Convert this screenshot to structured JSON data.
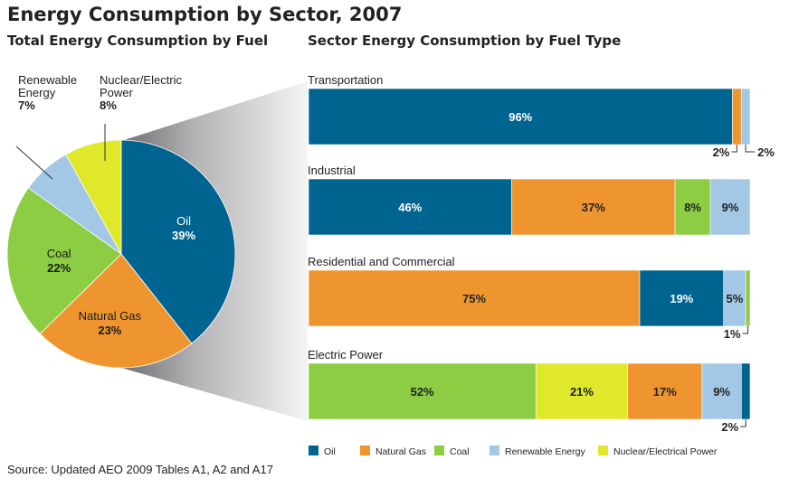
{
  "title": "Energy Consumption by Sector, 2007",
  "source": "Source: Updated AEO 2009 Tables A1, A2 and A17",
  "colors": {
    "Oil": "#006490",
    "Natural Gas": "#ef952f",
    "Coal": "#8ccd43",
    "Renewable Energy": "#a2c8e6",
    "Nuclear/Electric": "#dfe82a"
  },
  "chart_data": [
    {
      "type": "pie",
      "title": "Total Energy Consumption by Fuel",
      "slices": [
        {
          "name": "Oil",
          "value": 39,
          "label": "Oil",
          "value_label": "39%",
          "color_key": "Oil"
        },
        {
          "name": "Natural Gas",
          "value": 23,
          "label": "Natural Gas",
          "value_label": "23%",
          "color_key": "Natural Gas"
        },
        {
          "name": "Coal",
          "value": 22,
          "label": "Coal",
          "value_label": "22%",
          "color_key": "Coal"
        },
        {
          "name": "Renewable Energy",
          "value": 7,
          "label_lines": [
            "Renewable",
            "Energy"
          ],
          "value_label": "7%",
          "color_key": "Renewable Energy"
        },
        {
          "name": "Nuclear/Electric Power",
          "value": 8,
          "label_lines": [
            "Nuclear/Electric",
            "Power"
          ],
          "value_label": "8%",
          "color_key": "Nuclear/Electric"
        }
      ]
    },
    {
      "type": "bar",
      "orientation": "horizontal",
      "stacked": true,
      "title": "Sector Energy Consumption by Fuel Type",
      "categories": [
        "Transportation",
        "Industrial",
        "Residential and Commercial",
        "Electric Power"
      ],
      "series_order": [
        "Oil",
        "Natural Gas",
        "Coal",
        "Renewable Energy",
        "Nuclear/Electrical Power"
      ],
      "sectors": [
        {
          "name": "Transportation",
          "segments": [
            {
              "fuel": "Oil",
              "value": 96,
              "label": "96%"
            },
            {
              "fuel": "Natural Gas",
              "value": 2,
              "label": "2%",
              "callout": true
            },
            {
              "fuel": "Renewable Energy",
              "value": 2,
              "label": "2%",
              "callout": true
            }
          ]
        },
        {
          "name": "Industrial",
          "segments": [
            {
              "fuel": "Oil",
              "value": 46,
              "label": "46%"
            },
            {
              "fuel": "Natural Gas",
              "value": 37,
              "label": "37%"
            },
            {
              "fuel": "Coal",
              "value": 8,
              "label": "8%"
            },
            {
              "fuel": "Renewable Energy",
              "value": 9,
              "label": "9%"
            }
          ]
        },
        {
          "name": "Residential and Commercial",
          "segments": [
            {
              "fuel": "Natural Gas",
              "value": 75,
              "label": "75%"
            },
            {
              "fuel": "Oil",
              "value": 19,
              "label": "19%"
            },
            {
              "fuel": "Renewable Energy",
              "value": 5,
              "label": "5%"
            },
            {
              "fuel": "Coal",
              "value": 1,
              "label": "1%",
              "callout": true
            }
          ]
        },
        {
          "name": "Electric Power",
          "segments": [
            {
              "fuel": "Coal",
              "value": 52,
              "label": "52%"
            },
            {
              "fuel": "Nuclear/Electrical Power",
              "value": 21,
              "label": "21%"
            },
            {
              "fuel": "Natural Gas",
              "value": 17,
              "label": "17%"
            },
            {
              "fuel": "Renewable Energy",
              "value": 9,
              "label": "9%"
            },
            {
              "fuel": "Oil",
              "value": 2,
              "label": "2%",
              "callout": true
            }
          ]
        }
      ],
      "legend": {
        "position": "bottom",
        "items": [
          {
            "label": "Oil",
            "color_key": "Oil"
          },
          {
            "label": "Natural Gas",
            "color_key": "Natural Gas"
          },
          {
            "label": "Coal",
            "color_key": "Coal"
          },
          {
            "label": "Renewable Energy",
            "color_key": "Renewable Energy"
          },
          {
            "label": "Nuclear/Electrical Power",
            "color_key": "Nuclear/Electric"
          }
        ]
      }
    }
  ]
}
